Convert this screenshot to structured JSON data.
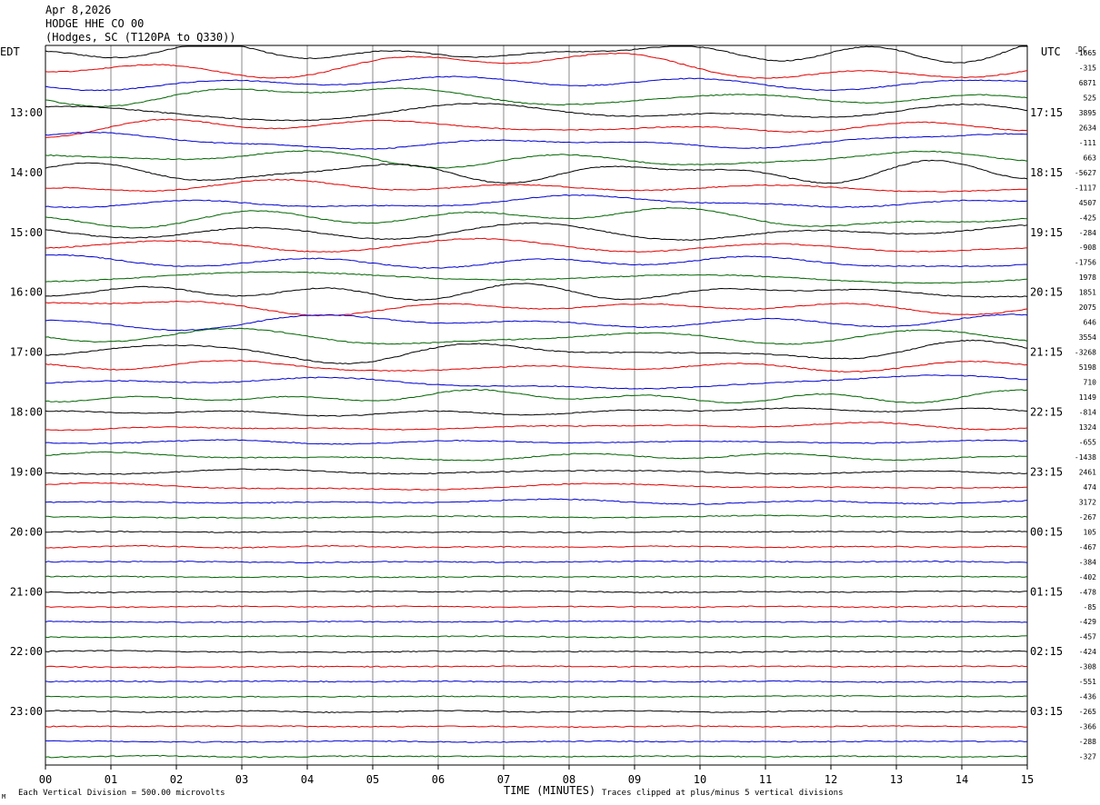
{
  "header": {
    "date": "Apr 8,2026",
    "station": "HODGE HHE CO 00",
    "location": "(Hodges, SC (T120PA to Q330))"
  },
  "footer": {
    "scale_note": "Each Vertical Division =  500.00 microvolts",
    "clip_note": "Traces clipped at plus/minus 5 vertical divisions",
    "corner_mark": "M"
  },
  "chart_data": {
    "type": "line",
    "title": "",
    "xlabel": "TIME (MINUTES)",
    "x_ticks": [
      "00",
      "01",
      "02",
      "03",
      "04",
      "05",
      "06",
      "07",
      "08",
      "09",
      "10",
      "11",
      "12",
      "13",
      "14",
      "15"
    ],
    "xlim": [
      0,
      15
    ],
    "left_axis_label": "EDT",
    "right_axis_label": "UTC",
    "dc_label": "DC",
    "edt_hour_labels": [
      "13:00",
      "14:00",
      "15:00",
      "16:00",
      "17:00",
      "18:00",
      "19:00",
      "20:00",
      "21:00",
      "22:00",
      "23:00"
    ],
    "utc_hour_labels": [
      "17:15",
      "18:15",
      "19:15",
      "20:15",
      "21:15",
      "22:15",
      "23:15",
      "00:15",
      "01:15",
      "02:15",
      "03:15"
    ],
    "trace_colors": [
      "#000000",
      "#e00000",
      "#0000d0",
      "#006400"
    ],
    "dc_offsets": [
      -1665,
      -315,
      6871,
      525,
      3895,
      2634,
      -111,
      663,
      -5627,
      -1117,
      4507,
      -425,
      -284,
      -908,
      -1756,
      1978,
      1851,
      2075,
      646,
      3554,
      -3268,
      5198,
      710,
      1149,
      -814,
      1324,
      -655,
      -1438,
      2461,
      474,
      3172,
      -267,
      105,
      -467,
      -384,
      -402,
      -478,
      -85,
      -429,
      -457,
      -424,
      -308,
      -551,
      -436,
      -265,
      -366,
      -288,
      -327
    ],
    "trace_amplitude_divisions": [
      1.6,
      2.0,
      1.2,
      1.8,
      1.5,
      1.4,
      1.3,
      1.6,
      1.5,
      1.4,
      1.3,
      1.6,
      1.5,
      1.7,
      1.3,
      1.2,
      1.4,
      1.3,
      1.2,
      1.3,
      1.4,
      1.2,
      1.0,
      1.2,
      0.7,
      0.6,
      0.45,
      0.9,
      0.4,
      0.6,
      0.5,
      0.2,
      0.12,
      0.12,
      0.12,
      0.1,
      0.1,
      0.1,
      0.1,
      0.1,
      0.1,
      0.1,
      0.1,
      0.1,
      0.1,
      0.1,
      0.1,
      0.1
    ]
  }
}
